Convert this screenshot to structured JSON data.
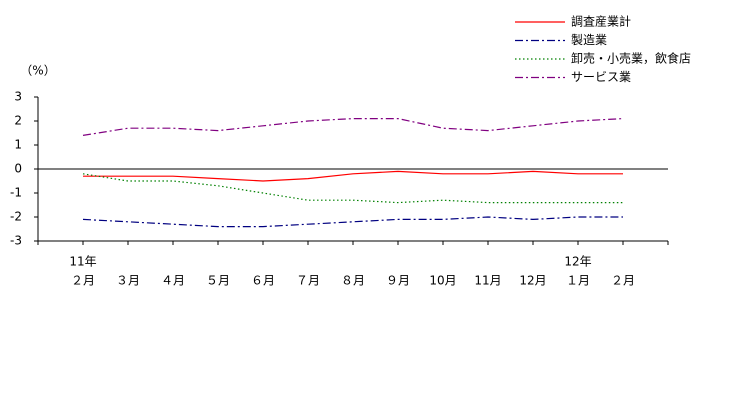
{
  "chart_data": {
    "type": "line",
    "y_label": "（%）",
    "categories": [
      "２月",
      "３月",
      "４月",
      "５月",
      "６月",
      "７月",
      "８月",
      "９月",
      "10月",
      "11月",
      "12月",
      "１月",
      "２月"
    ],
    "year_labels": [
      "11年",
      null,
      null,
      null,
      null,
      null,
      null,
      null,
      null,
      null,
      null,
      "12年",
      null
    ],
    "ylim": [
      -3,
      3
    ],
    "yticks": [
      3,
      2,
      1,
      0,
      -1,
      -2,
      -3
    ],
    "legend": "top-right",
    "series": [
      {
        "name": "調査産業計",
        "color": "#ff0000",
        "dash": "solid",
        "values": [
          -0.3,
          -0.3,
          -0.3,
          -0.4,
          -0.5,
          -0.4,
          -0.2,
          -0.1,
          -0.2,
          -0.2,
          -0.1,
          -0.2,
          -0.2
        ]
      },
      {
        "name": "製造業",
        "color": "#000080",
        "dash": "dash-dot",
        "values": [
          -2.1,
          -2.2,
          -2.3,
          -2.4,
          -2.4,
          -2.3,
          -2.2,
          -2.1,
          -2.1,
          -2.0,
          -2.1,
          -2.0,
          -2.0
        ]
      },
      {
        "name": "卸売・小売業，飲食店",
        "color": "#008000",
        "dash": "dot",
        "values": [
          -0.2,
          -0.5,
          -0.5,
          -0.7,
          -1.0,
          -1.3,
          -1.3,
          -1.4,
          -1.3,
          -1.4,
          -1.4,
          -1.4,
          -1.4
        ]
      },
      {
        "name": "サービス業",
        "color": "#800080",
        "dash": "dash-dot",
        "values": [
          1.4,
          1.7,
          1.7,
          1.6,
          1.8,
          2.0,
          2.1,
          2.1,
          1.7,
          1.6,
          1.8,
          2.0,
          2.1
        ]
      }
    ]
  }
}
